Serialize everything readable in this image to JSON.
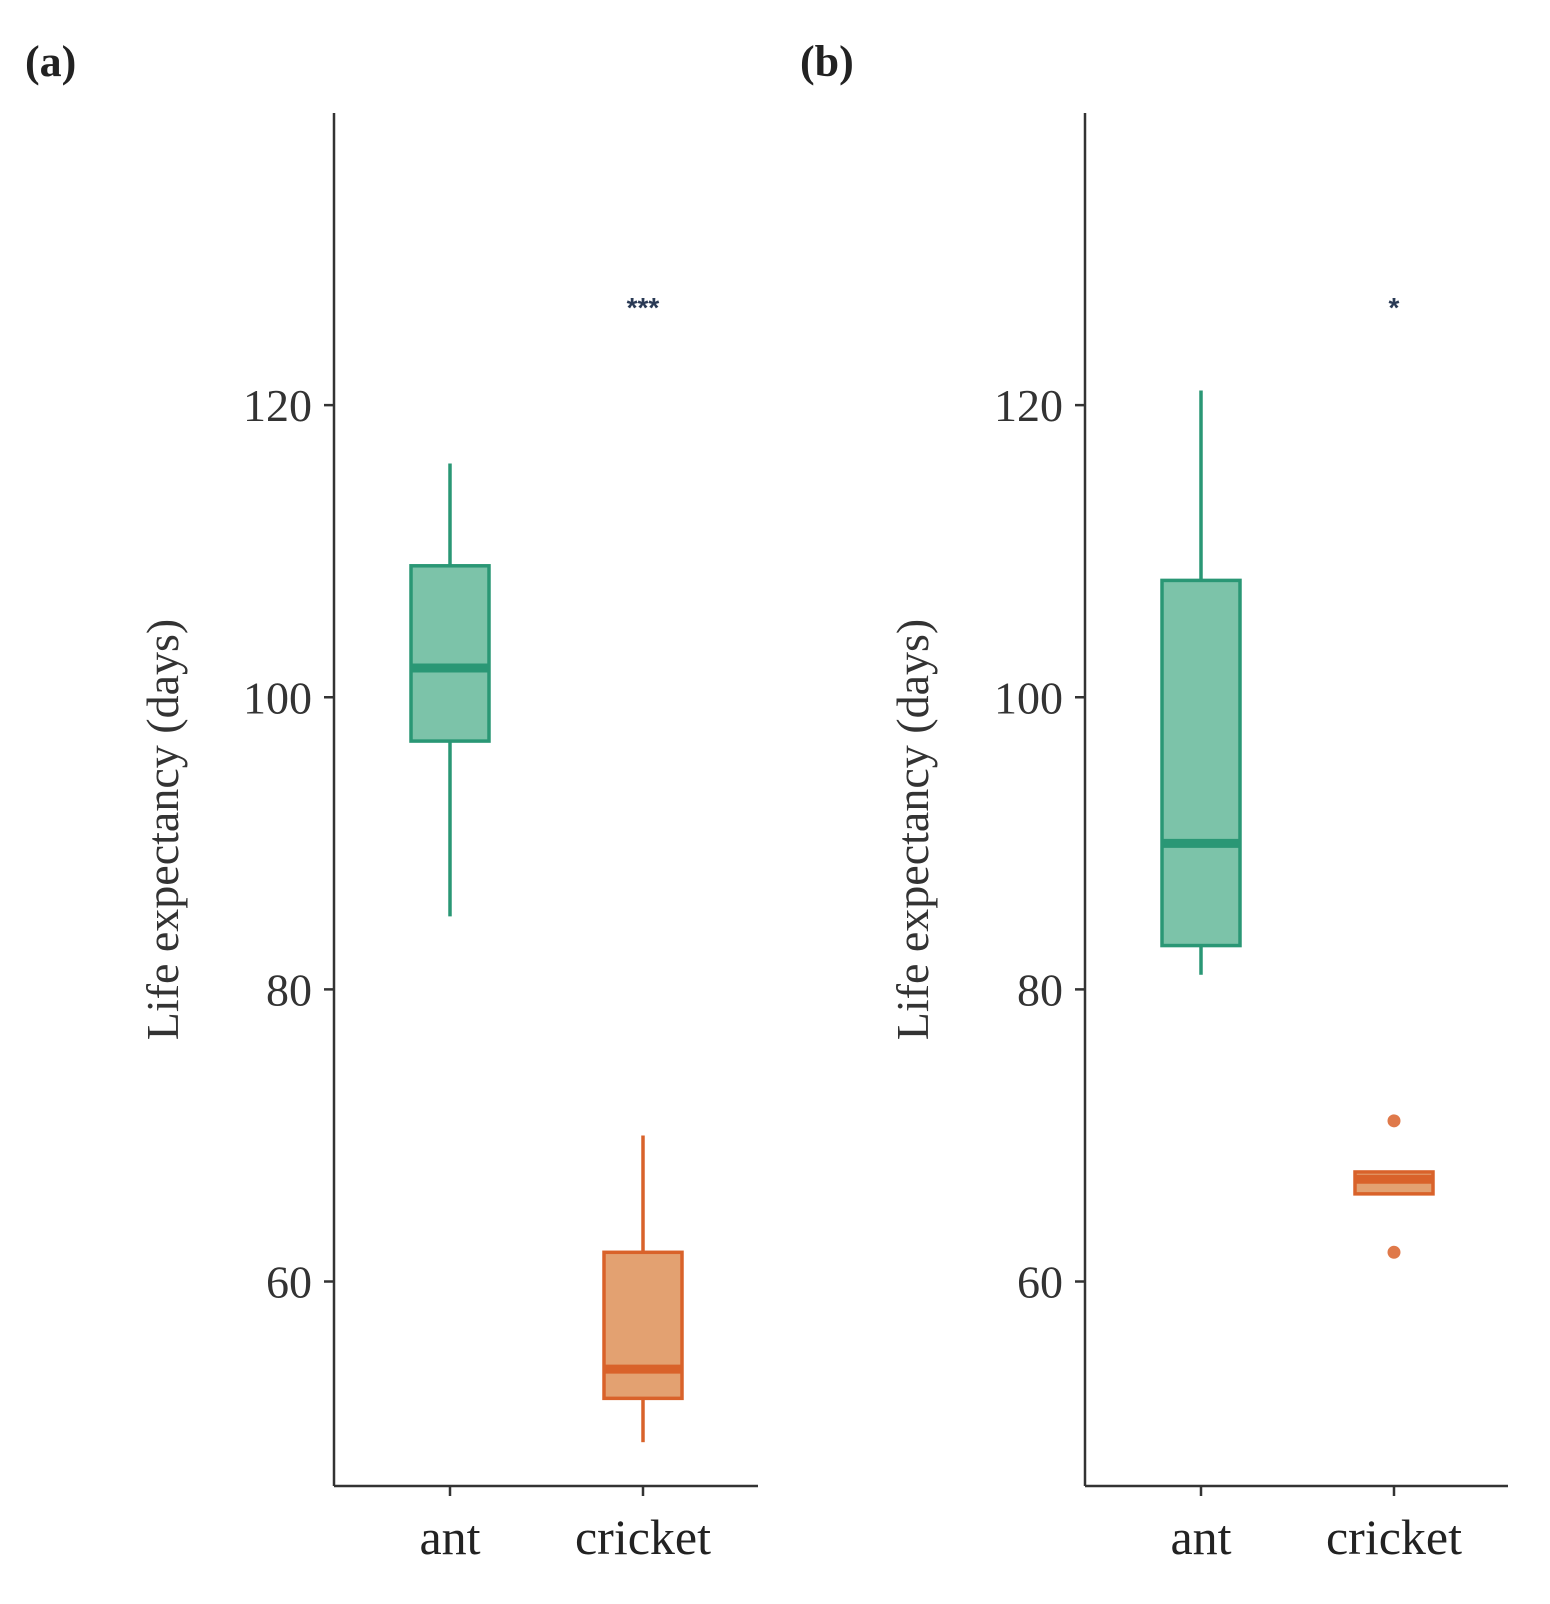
{
  "chart_data": [
    {
      "panel": "(a)",
      "type": "boxplot",
      "ylabel": "Life expectancy (days)",
      "ylim": [
        46,
        140
      ],
      "yticks": [
        60,
        80,
        100,
        120
      ],
      "categories": [
        "ant",
        "cricket"
      ],
      "boxes": [
        {
          "category": "ant",
          "color": "#2a9775",
          "fill": "#7cc3a9",
          "whisker_low": 85,
          "q1": 97,
          "median": 102,
          "q3": 109,
          "whisker_high": 116,
          "outliers": []
        },
        {
          "category": "cricket",
          "color": "#d9622a",
          "fill": "#e3a171",
          "whisker_low": 49,
          "q1": 52,
          "median": 54,
          "q3": 62,
          "whisker_high": 70,
          "outliers": []
        }
      ],
      "annotations": [
        {
          "category": "cricket",
          "y": 127,
          "text": "***"
        }
      ]
    },
    {
      "panel": "(b)",
      "type": "boxplot",
      "ylabel": "Life expectancy (days)",
      "ylim": [
        46,
        140
      ],
      "yticks": [
        60,
        80,
        100,
        120
      ],
      "categories": [
        "ant",
        "cricket"
      ],
      "boxes": [
        {
          "category": "ant",
          "color": "#2a9775",
          "fill": "#7cc3a9",
          "whisker_low": 81,
          "q1": 83,
          "median": 90,
          "q3": 108,
          "whisker_high": 121,
          "outliers": []
        },
        {
          "category": "cricket",
          "color": "#d9622a",
          "fill": "#e3a171",
          "whisker_low": 66,
          "q1": 66,
          "median": 67,
          "q3": 67.5,
          "whisker_high": 67.5,
          "outliers": [
            62,
            71
          ]
        }
      ],
      "annotations": [
        {
          "category": "cricket",
          "y": 127,
          "text": "*"
        }
      ]
    }
  ]
}
